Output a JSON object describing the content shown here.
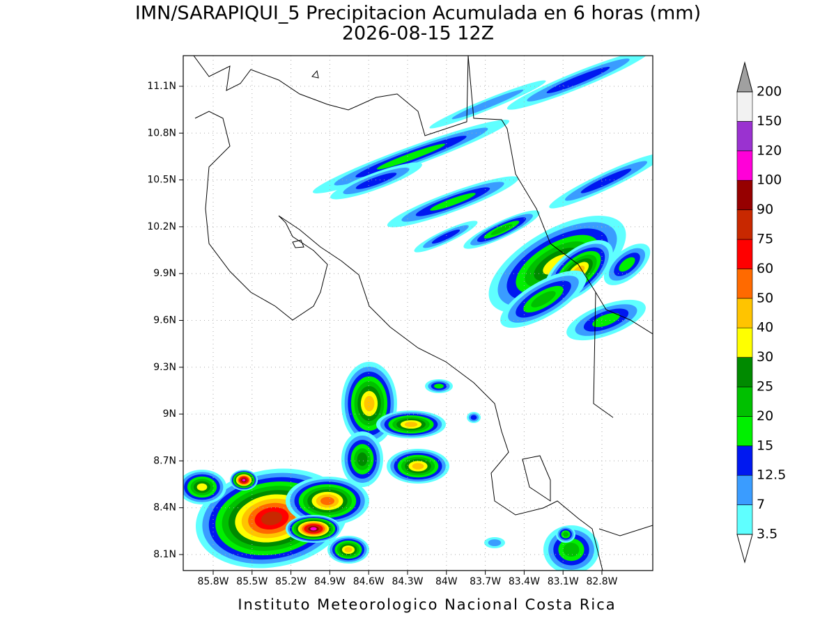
{
  "header": {
    "title": "IMN/SARAPIQUI_5 Precipitacion Acumulada en 6 horas (mm)",
    "subtitle": "2026-08-15 12Z"
  },
  "map": {
    "lat_labels": [
      "11.1N",
      "10.8N",
      "10.5N",
      "10.2N",
      "9.9N",
      "9.6N",
      "9.3N",
      "9N",
      "8.7N",
      "8.4N",
      "8.1N"
    ],
    "lon_labels": [
      "85.8W",
      "85.5W",
      "85.2W",
      "84.9W",
      "84.6W",
      "84.3W",
      "84W",
      "83.7W",
      "83.4W",
      "83.1W",
      "82.8W"
    ]
  },
  "legend": {
    "levels": [
      3.5,
      7,
      12.5,
      15,
      20,
      25,
      30,
      40,
      50,
      60,
      75,
      90,
      100,
      120,
      150,
      200
    ],
    "colors": [
      "#5fffff",
      "#3a9cff",
      "#0018f0",
      "#00f000",
      "#00c000",
      "#008a00",
      "#ffff00",
      "#ffc400",
      "#ff6a00",
      "#ff0000",
      "#c82800",
      "#960000",
      "#ff00d8",
      "#9a32d0",
      "#f2f2f2"
    ],
    "under_color": "#ffffff",
    "over_color": "#a0a0a0"
  },
  "footer": {
    "credit": "Instituto Meteorologico Nacional Costa Rica"
  }
}
